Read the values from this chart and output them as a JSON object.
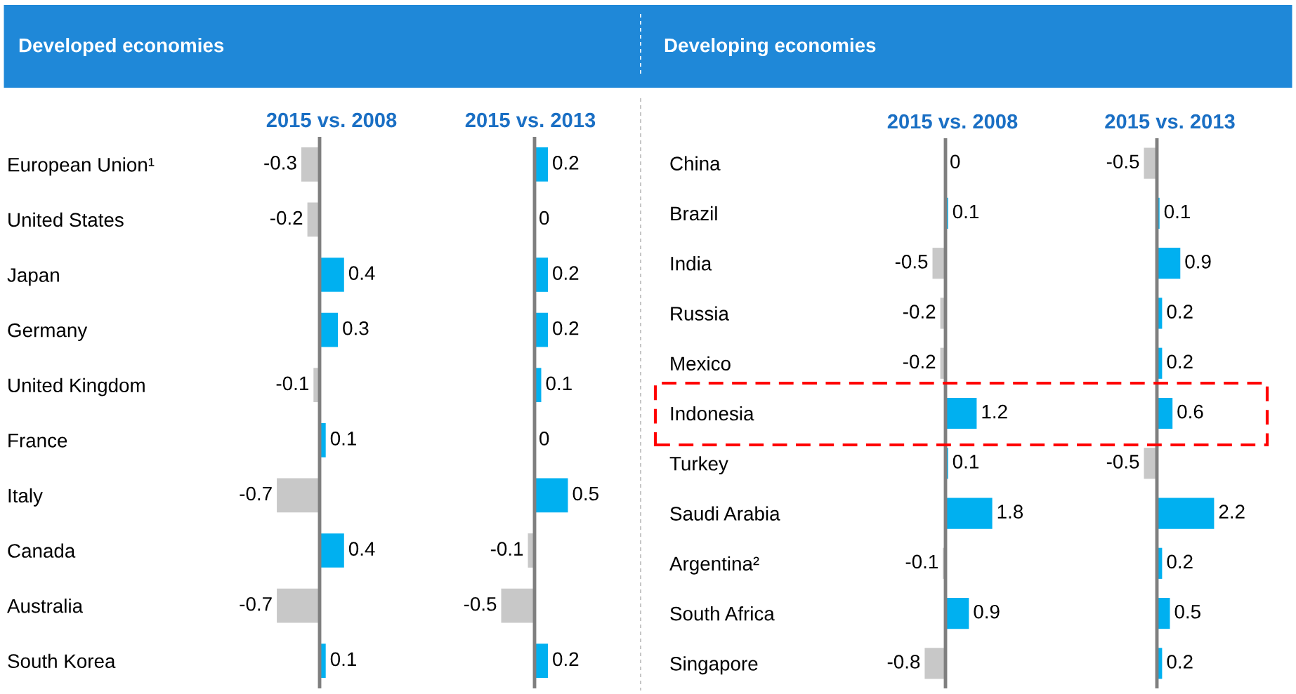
{
  "chart_data": [
    {
      "type": "bar",
      "orientation": "horizontal",
      "title": "2015 vs. 2008",
      "annotations": [
        "Developed economies"
      ],
      "categories": [
        "European Union¹",
        "United States",
        "Japan",
        "Germany",
        "United Kingdom",
        "France",
        "Italy",
        "Canada",
        "Australia",
        "South Korea"
      ],
      "values": [
        -0.3,
        -0.2,
        0.4,
        0.3,
        -0.1,
        0.1,
        -0.7,
        0.4,
        -0.7,
        0.1
      ],
      "colors": [
        "#c8c8c8",
        "#c8c8c8",
        "#00b0f0",
        "#00b0f0",
        "#c8c8c8",
        "#00b0f0",
        "#c8c8c8",
        "#00b0f0",
        "#c8c8c8",
        "#00b0f0"
      ],
      "data_labels": true,
      "tick_labels": "y"
    },
    {
      "type": "bar",
      "orientation": "horizontal",
      "title": "2015 vs. 2013",
      "categories": [
        null,
        null,
        null,
        null,
        null,
        null,
        null,
        null,
        null,
        null
      ],
      "values": [
        0.2,
        0,
        0.2,
        0.2,
        0.1,
        0,
        0.5,
        -0.1,
        -0.5,
        0.2
      ],
      "colors": [
        "#00b0f0",
        "#00b0f0",
        "#00b0f0",
        "#00b0f0",
        "#00b0f0",
        "#00b0f0",
        "#00b0f0",
        "#c8c8c8",
        "#c8c8c8",
        "#00b0f0"
      ],
      "data_labels": true,
      "tick_labels": false
    },
    {
      "type": "bar",
      "orientation": "horizontal",
      "title": "2015 vs. 2008",
      "annotations": [
        "Developing economies"
      ],
      "categories": [
        "China",
        "Brazil",
        "India",
        "Russia",
        "Mexico",
        "Indonesia",
        "Turkey",
        "Saudi Arabia",
        "Argentina²",
        "South Africa",
        "Singapore"
      ],
      "values": [
        0,
        0.1,
        -0.5,
        -0.2,
        -0.2,
        1.2,
        0.1,
        1.8,
        -0.1,
        0.9,
        -0.8
      ],
      "colors": [
        "#00b0f0",
        "#00b0f0",
        "#c8c8c8",
        "#c8c8c8",
        "#c8c8c8",
        "#00b0f0",
        "#00b0f0",
        "#00b0f0",
        "#c8c8c8",
        "#00b0f0",
        "#c8c8c8"
      ],
      "data_labels": true,
      "tick_labels": "y"
    },
    {
      "type": "bar",
      "orientation": "horizontal",
      "title": "2015 vs. 2013",
      "categories": [
        null,
        null,
        null,
        null,
        null,
        null,
        null,
        null,
        null,
        null,
        null
      ],
      "values": [
        -0.5,
        0.1,
        0.9,
        0.2,
        0.2,
        0.6,
        -0.5,
        2.2,
        0.2,
        0.5,
        0.2
      ],
      "colors": [
        "#c8c8c8",
        "#00b0f0",
        "#00b0f0",
        "#00b0f0",
        "#00b0f0",
        "#00b0f0",
        "#c8c8c8",
        "#00b0f0",
        "#00b0f0",
        "#00b0f0",
        "#00b0f0"
      ],
      "data_labels": true,
      "tick_labels": false
    }
  ]
}
